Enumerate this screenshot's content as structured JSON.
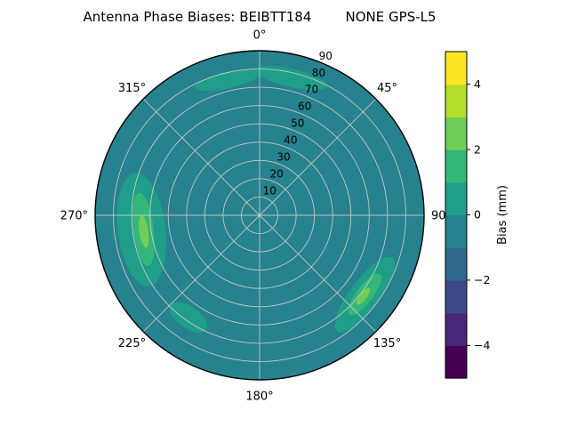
{
  "figure": {
    "title": "Antenna Phase Biases: BEIBTT184        NONE GPS-L5"
  },
  "chart_data": {
    "type": "heatmap",
    "projection": "polar-contour",
    "title": "Antenna Phase Biases: BEIBTT184        NONE GPS-L5",
    "station": "BEIBTT184",
    "signal": "NONE GPS-L5",
    "azimuth_ticks": [
      {
        "angle_deg": 0,
        "label": "0°"
      },
      {
        "angle_deg": 45,
        "label": "45°"
      },
      {
        "angle_deg": 90,
        "label": "90"
      },
      {
        "angle_deg": 135,
        "label": "135°"
      },
      {
        "angle_deg": 180,
        "label": "180°"
      },
      {
        "angle_deg": 225,
        "label": "225°"
      },
      {
        "angle_deg": 270,
        "label": "270°"
      },
      {
        "angle_deg": 315,
        "label": "315°"
      }
    ],
    "radial_ticks": [
      {
        "value": 10,
        "label": "10"
      },
      {
        "value": 20,
        "label": "20"
      },
      {
        "value": 30,
        "label": "30"
      },
      {
        "value": 40,
        "label": "40"
      },
      {
        "value": 50,
        "label": "50"
      },
      {
        "value": 60,
        "label": "60"
      },
      {
        "value": 70,
        "label": "70"
      },
      {
        "value": 80,
        "label": "80"
      },
      {
        "value": 90,
        "label": "90"
      }
    ],
    "radial_label_angle_deg": 22.5,
    "radial_max": 90,
    "grid": true,
    "grid_color": "#c6c6c6",
    "colorbar": {
      "label": "Bias (mm)",
      "min": -5,
      "max": 5,
      "level_step": 1,
      "tick_values": [
        -4,
        -2,
        0,
        2,
        4
      ],
      "tick_labels": [
        "−4",
        "−2",
        "0",
        "2",
        "4"
      ],
      "colors": [
        "#440154",
        "#482878",
        "#3e4989",
        "#31688e",
        "#26828e",
        "#1f9e89",
        "#35b779",
        "#6ece58",
        "#b5de2b",
        "#fde725"
      ]
    },
    "base_band": [
      -1,
      0
    ],
    "features": [
      {
        "azimuth_deg": 347,
        "elevation_deg": 14,
        "extent_azimuth_deg": 28,
        "extent_elevation_deg": 9,
        "band": [
          0,
          1
        ]
      },
      {
        "azimuth_deg": 13,
        "elevation_deg": 13,
        "extent_azimuth_deg": 30,
        "extent_elevation_deg": 10,
        "band": [
          0,
          1
        ]
      },
      {
        "azimuth_deg": 263,
        "elevation_deg": 25,
        "extent_azimuth_deg": 55,
        "extent_elevation_deg": 26,
        "band": [
          0,
          1
        ]
      },
      {
        "azimuth_deg": 263,
        "elevation_deg": 26,
        "extent_azimuth_deg": 36,
        "extent_elevation_deg": 11,
        "band": [
          1,
          2
        ]
      },
      {
        "azimuth_deg": 262,
        "elevation_deg": 26,
        "extent_azimuth_deg": 16,
        "extent_elevation_deg": 5,
        "band": [
          2,
          3
        ]
      },
      {
        "azimuth_deg": 127,
        "elevation_deg": 18,
        "extent_azimuth_deg": 40,
        "extent_elevation_deg": 16,
        "band": [
          0,
          1
        ]
      },
      {
        "azimuth_deg": 127,
        "elevation_deg": 18,
        "extent_azimuth_deg": 22,
        "extent_elevation_deg": 9,
        "band": [
          1,
          2
        ]
      },
      {
        "azimuth_deg": 128,
        "elevation_deg": 18,
        "extent_azimuth_deg": 9,
        "extent_elevation_deg": 4,
        "band": [
          2,
          3
        ]
      },
      {
        "azimuth_deg": 215,
        "elevation_deg": 22,
        "extent_azimuth_deg": 20,
        "extent_elevation_deg": 12,
        "band": [
          0,
          1
        ]
      }
    ]
  }
}
